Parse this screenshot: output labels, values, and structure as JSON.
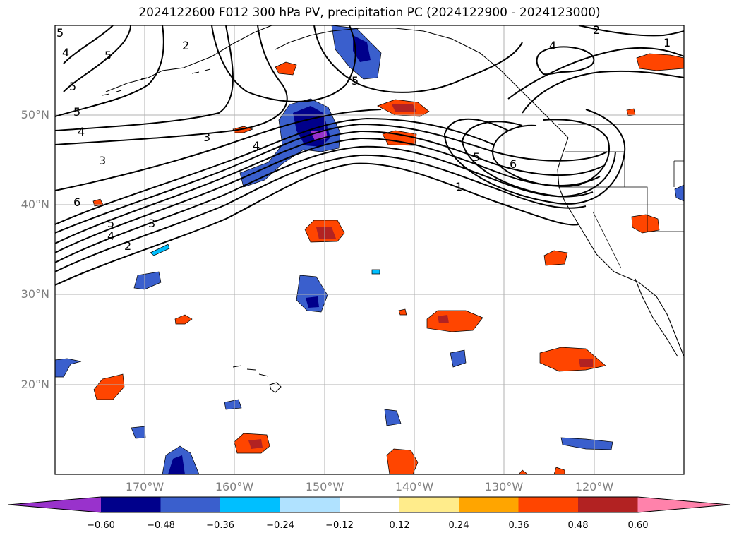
{
  "title": "2024122600 F012 300 hPa PV, precipitation PC (2024122900 - 2024123000)",
  "lat_labels": [
    "50°N",
    "40°N",
    "30°N",
    "20°N"
  ],
  "lon_labels": [
    "170°W",
    "160°W",
    "150°W",
    "140°W",
    "130°W",
    "120°W"
  ],
  "colorbar": {
    "tick_labels": [
      "−0.60",
      "−0.48",
      "−0.36",
      "−0.24",
      "−0.12",
      "0.12",
      "0.24",
      "0.36",
      "0.48",
      "0.60"
    ],
    "colors": [
      "#9932CC",
      "#00008B",
      "#3A5FCD",
      "#00BFFF",
      "#B0E2FF",
      "#FFFFFF",
      "#FFEC8B",
      "#FFA500",
      "#FF4500",
      "#B22222",
      "#FF82AB"
    ]
  },
  "contour_labels": [
    "5",
    "4",
    "5",
    "2",
    "5",
    "5",
    "4",
    "3",
    "4",
    "3",
    "6",
    "5",
    "4",
    "3",
    "2",
    "5",
    "6",
    "1",
    "4",
    "2",
    "1",
    "5"
  ]
}
